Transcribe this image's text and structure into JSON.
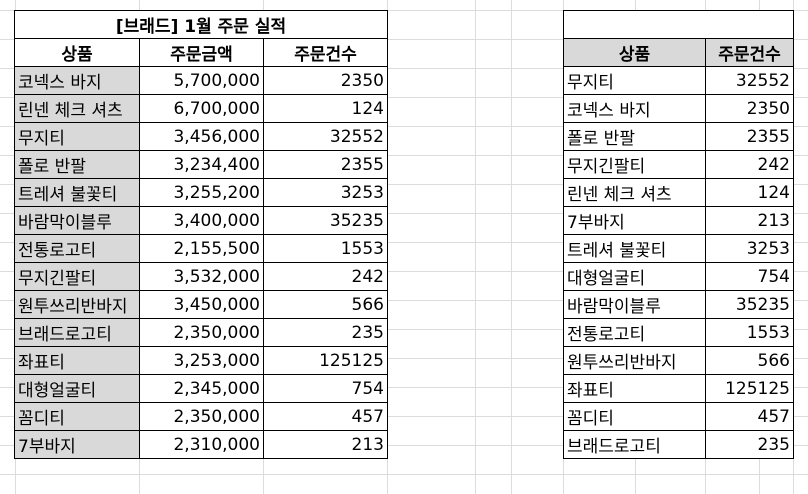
{
  "left_table": {
    "title": "[브래드] 1월 주문 실적",
    "headers": [
      "상품",
      "주문금액",
      "주문건수"
    ],
    "rows": [
      {
        "name": "코넥스 바지",
        "amount": "5,700,000",
        "count": "2350"
      },
      {
        "name": "린넨 체크 셔츠",
        "amount": "6,700,000",
        "count": "124"
      },
      {
        "name": "무지티",
        "amount": "3,456,000",
        "count": "32552"
      },
      {
        "name": "폴로 반팔",
        "amount": "3,234,400",
        "count": "2355"
      },
      {
        "name": "트레셔 불꽃티",
        "amount": "3,255,200",
        "count": "3253"
      },
      {
        "name": "바람막이블루",
        "amount": "3,400,000",
        "count": "35235"
      },
      {
        "name": "전통로고티",
        "amount": "2,155,500",
        "count": "1553"
      },
      {
        "name": "무지긴팔티",
        "amount": "3,532,000",
        "count": "242"
      },
      {
        "name": "원투쓰리반바지",
        "amount": "3,450,000",
        "count": "566"
      },
      {
        "name": "브래드로고티",
        "amount": "2,350,000",
        "count": "235"
      },
      {
        "name": "좌표티",
        "amount": "3,253,000",
        "count": "125125"
      },
      {
        "name": "대형얼굴티",
        "amount": "2,345,000",
        "count": "754"
      },
      {
        "name": "꼼디티",
        "amount": "2,350,000",
        "count": "457"
      },
      {
        "name": "7부바지",
        "amount": "2,310,000",
        "count": "213"
      }
    ]
  },
  "right_table": {
    "title": "",
    "headers": [
      "상품",
      "주문건수"
    ],
    "rows": [
      {
        "name": "무지티",
        "count": "32552"
      },
      {
        "name": "코넥스 바지",
        "count": "2350"
      },
      {
        "name": "폴로 반팔",
        "count": "2355"
      },
      {
        "name": "무지긴팔티",
        "count": "242"
      },
      {
        "name": "린넨 체크 셔츠",
        "count": "124"
      },
      {
        "name": "7부바지",
        "count": "213"
      },
      {
        "name": "트레셔 불꽃티",
        "count": "3253"
      },
      {
        "name": "대형얼굴티",
        "count": "754"
      },
      {
        "name": "바람막이블루",
        "count": "35235"
      },
      {
        "name": "전통로고티",
        "count": "1553"
      },
      {
        "name": "원투쓰리반바지",
        "count": "566"
      },
      {
        "name": "좌표티",
        "count": "125125"
      },
      {
        "name": "꼼디티",
        "count": "457"
      },
      {
        "name": "브래드로고티",
        "count": "235"
      }
    ]
  },
  "colors": {
    "name_cell_fill": "#d9d9d9",
    "border": "#000000",
    "gridline": "#dcdcdc"
  }
}
